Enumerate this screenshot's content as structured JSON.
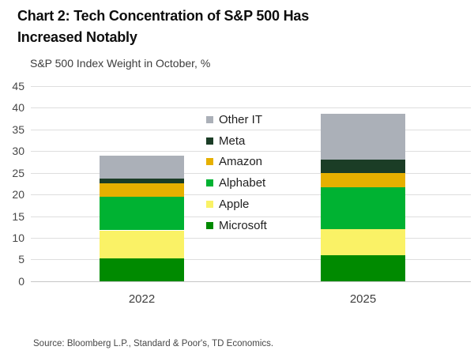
{
  "title": {
    "line1": "Chart 2: Tech Concentration of S&P 500 Has",
    "line2": "Increased Notably"
  },
  "subtitle": "S&P 500 Index Weight in October, %",
  "source": "Source: Bloomberg L.P., Standard & Poor's, TD Economics.",
  "chart_data": {
    "type": "bar",
    "stacked": true,
    "title": "Chart 2: Tech Concentration of S&P 500 Has Increased Notably",
    "subtitle": "S&P 500 Index Weight in October, %",
    "xlabel": "",
    "ylabel": "",
    "categories": [
      "2022",
      "2025"
    ],
    "series": [
      {
        "name": "Microsoft",
        "color": "#008A00",
        "values": [
          5.3,
          6.0
        ]
      },
      {
        "name": "Apple",
        "color": "#FAF266",
        "values": [
          6.4,
          6.0
        ]
      },
      {
        "name": "Alphabet",
        "color": "#00B232",
        "values": [
          7.7,
          9.6
        ]
      },
      {
        "name": "Amazon",
        "color": "#E6B000",
        "values": [
          3.2,
          3.4
        ]
      },
      {
        "name": "Meta",
        "color": "#1B3D26",
        "values": [
          1.1,
          3.0
        ]
      },
      {
        "name": "Other IT",
        "color": "#ABB0B8",
        "values": [
          5.2,
          10.6
        ]
      }
    ],
    "stack_order_bottom_to_top": [
      "Microsoft",
      "Apple",
      "Alphabet",
      "Amazon",
      "Meta",
      "Other IT"
    ],
    "legend_order_top_to_bottom": [
      "Other IT",
      "Meta",
      "Amazon",
      "Alphabet",
      "Apple",
      "Microsoft"
    ],
    "y_axis": {
      "min": 0,
      "max": 45,
      "step": 5,
      "ticks": [
        0,
        5,
        10,
        15,
        20,
        25,
        30,
        35,
        40,
        45
      ]
    },
    "grid": true,
    "legend_position": "inside-plot-between-bars"
  }
}
